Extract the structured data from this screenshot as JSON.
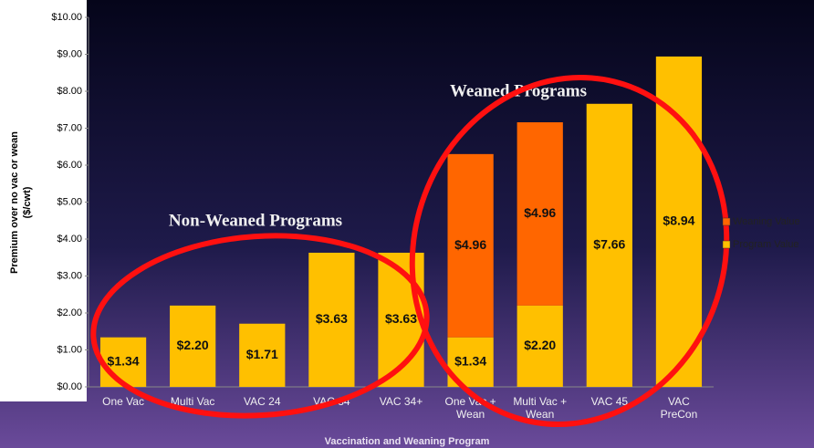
{
  "chart_data": {
    "type": "stacked_bar",
    "x_label": "Vaccination and Weaning Program",
    "y_label": [
      "Premium over no vac or wean",
      "($/cwt)"
    ],
    "categories": [
      "One Vac",
      "Multi Vac",
      "VAC 24",
      "VAC 34",
      "VAC 34+",
      "One Vac + Wean",
      "Multi Vac + Wean",
      "VAC 45",
      "VAC PreCon"
    ],
    "series": [
      {
        "name": "Program Value",
        "color": "#ffc000",
        "values": [
          1.34,
          2.2,
          1.71,
          3.63,
          3.63,
          1.34,
          2.2,
          7.66,
          8.94
        ],
        "value_labels": [
          "$1.34",
          "$2.20",
          "$1.71",
          "$3.63",
          "$3.63",
          "$1.34",
          "$2.20",
          "$7.66",
          "$8.94"
        ]
      },
      {
        "name": "Weaning Value",
        "color": "#ff6600",
        "values": [
          null,
          null,
          null,
          null,
          null,
          4.96,
          4.96,
          null,
          null
        ],
        "value_labels": [
          null,
          null,
          null,
          null,
          null,
          "$4.96",
          "$4.96",
          null,
          null
        ]
      }
    ],
    "ylim": [
      0,
      10
    ],
    "yticks": [
      {
        "value": 0,
        "label": "$0.00"
      },
      {
        "value": 1,
        "label": "$1.00"
      },
      {
        "value": 2,
        "label": "$2.00"
      },
      {
        "value": 3,
        "label": "$3.00"
      },
      {
        "value": 4,
        "label": "$4.00"
      },
      {
        "value": 5,
        "label": "$5.00"
      },
      {
        "value": 6,
        "label": "$6.00"
      },
      {
        "value": 7,
        "label": "$7.00"
      },
      {
        "value": 8,
        "label": "$8.00"
      },
      {
        "value": 9,
        "label": "$9.00"
      },
      {
        "value": 10,
        "label": "$10.00"
      }
    ],
    "grid": false,
    "legend": "right",
    "annotations": [
      "Non-Weaned Programs",
      "Weaned Programs"
    ]
  }
}
